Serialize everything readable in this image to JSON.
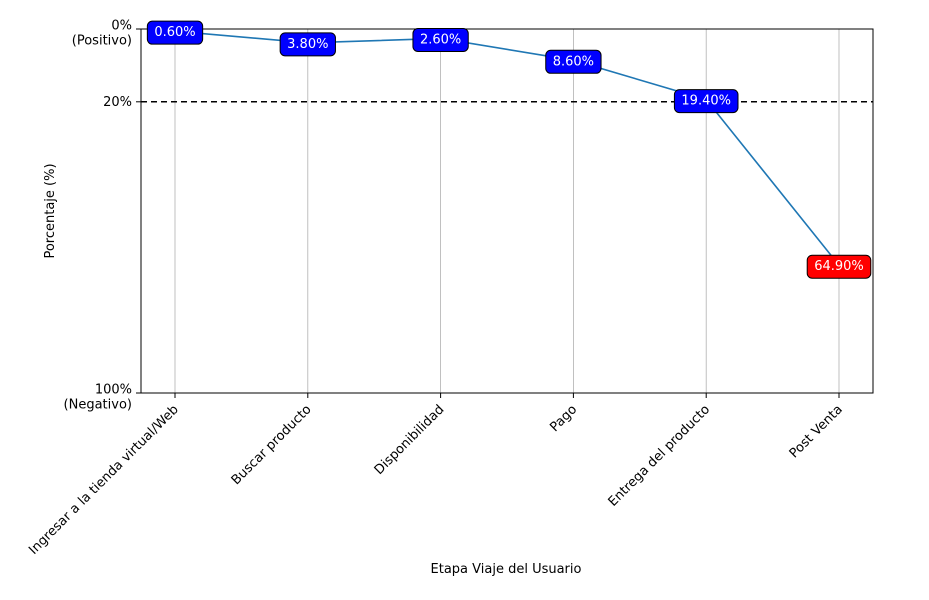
{
  "chart_data": {
    "type": "line",
    "x_label": "Etapa Viaje del Usuario",
    "y_label": "Porcentaje (%)",
    "categories": [
      "Ingresar a la tienda virtual/Web",
      "Buscar producto",
      "Disponibilidad",
      "Pago",
      "Entrega del producto",
      "Post Venta"
    ],
    "values": [
      0.6,
      3.8,
      2.6,
      8.6,
      19.4,
      64.9
    ],
    "value_labels": [
      "0.60%",
      "3.80%",
      "2.60%",
      "8.60%",
      "19.40%",
      "64.90%"
    ],
    "label_colors": [
      "#0000ff",
      "#0000ff",
      "#0000ff",
      "#0000ff",
      "#0000ff",
      "#ff0000"
    ],
    "color": "#1f77b4",
    "ylim": [
      0,
      100
    ],
    "y_inverted": true,
    "yticks": [
      {
        "value": 0,
        "label": "0%\n(Positivo)"
      },
      {
        "value": 20,
        "label": "20%"
      },
      {
        "value": 100,
        "label": "100%\n(Negativo)"
      }
    ],
    "x_grid": true,
    "reference_line": 20
  }
}
